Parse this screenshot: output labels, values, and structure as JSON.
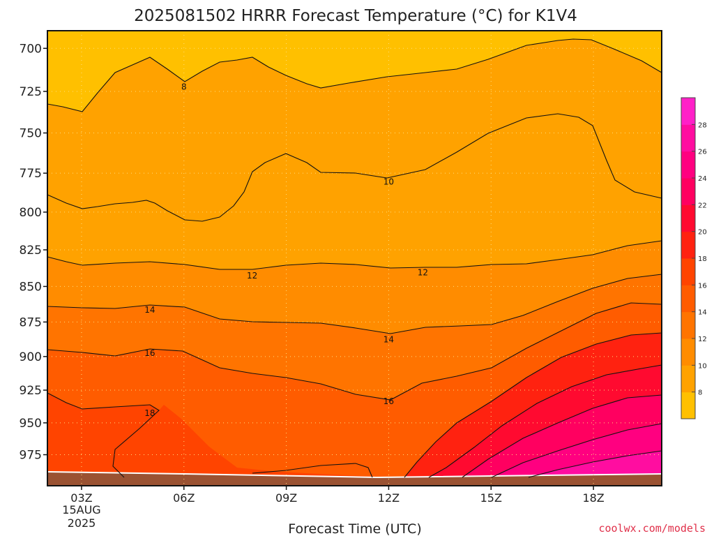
{
  "chart_data": {
    "type": "filled-contour",
    "title": "2025081502 HRRR Forecast Temperature (°C) for K1V4",
    "xlabel": "Forecast Time (UTC)",
    "ylabel": "",
    "y_scale": "log",
    "y_inverted": true,
    "ylim": [
      1000,
      690
    ],
    "xlim": [
      "02Z",
      "20Z"
    ],
    "y_ticks": [
      700,
      725,
      750,
      775,
      800,
      825,
      850,
      875,
      900,
      925,
      950,
      975
    ],
    "x_ticks": [
      {
        "value": "03Z",
        "label": "03Z",
        "date_line1": "15AUG",
        "date_line2": "2025"
      },
      {
        "value": "06Z",
        "label": "06Z"
      },
      {
        "value": "09Z",
        "label": "09Z"
      },
      {
        "value": "12Z",
        "label": "12Z"
      },
      {
        "value": "15Z",
        "label": "15Z"
      },
      {
        "value": "18Z",
        "label": "18Z"
      }
    ],
    "grid": true,
    "contour_interval": 2,
    "contour_labels": [
      {
        "label": "8",
        "x": "06Z",
        "y": 722
      },
      {
        "label": "10",
        "x": "12Z",
        "y": 780
      },
      {
        "label": "12",
        "x": "08Z",
        "y": 842
      },
      {
        "label": "12",
        "x": "13Z",
        "y": 840
      },
      {
        "label": "14",
        "x": "05Z",
        "y": 866
      },
      {
        "label": "14",
        "x": "12Z",
        "y": 887
      },
      {
        "label": "16",
        "x": "05Z",
        "y": 897
      },
      {
        "label": "16",
        "x": "12Z",
        "y": 933
      },
      {
        "label": "18",
        "x": "05Z",
        "y": 942
      }
    ],
    "colorbar": {
      "ticks": [
        8,
        10,
        12,
        14,
        16,
        18,
        20,
        22,
        24,
        26,
        28
      ],
      "colors": [
        "#ffc000",
        "#ffa200",
        "#ff8c00",
        "#ff7400",
        "#ff5c00",
        "#ff4400",
        "#ff2210",
        "#ff0a30",
        "#ff0060",
        "#ff0080",
        "#ff0da0",
        "#ff20c8"
      ]
    },
    "ground_color": "#9a5232",
    "grid_color": "#ffe080",
    "credit": "coolwx.com/models"
  }
}
